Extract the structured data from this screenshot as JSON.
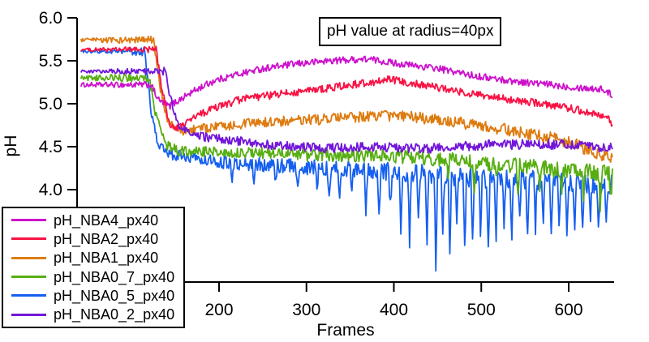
{
  "chart_data": {
    "type": "line",
    "title": "pH value at radius=40px",
    "xlabel": "Frames",
    "ylabel": "pH",
    "xlim": [
      37,
      652
    ],
    "ylim": [
      2.92,
      6.0
    ],
    "x_ticks": [
      200,
      300,
      400,
      500,
      600
    ],
    "y_ticks": [
      4.0,
      4.5,
      5.0,
      5.5,
      6.0
    ],
    "y_tick_labels": [
      "4.0",
      "4.5",
      "5.0",
      "5.5",
      "6.0"
    ],
    "grid": false,
    "legend_position": "bottom-left",
    "frame_range": [
      42,
      650
    ],
    "series": [
      {
        "name": "pH_NBA4_px40",
        "color": "#cc11cc",
        "anchors": [
          [
            42,
            5.22
          ],
          [
            122,
            5.22
          ],
          [
            131,
            5.04
          ],
          [
            143,
            4.97
          ],
          [
            157,
            5.06
          ],
          [
            175,
            5.17
          ],
          [
            195,
            5.27
          ],
          [
            220,
            5.34
          ],
          [
            250,
            5.41
          ],
          [
            285,
            5.46
          ],
          [
            325,
            5.5
          ],
          [
            370,
            5.52
          ],
          [
            410,
            5.46
          ],
          [
            450,
            5.41
          ],
          [
            490,
            5.33
          ],
          [
            530,
            5.27
          ],
          [
            570,
            5.23
          ],
          [
            610,
            5.19
          ],
          [
            638,
            5.17
          ],
          [
            650,
            5.1
          ]
        ],
        "noise": [
          [
            42,
            0.025
          ],
          [
            130,
            0.04
          ],
          [
            650,
            0.04
          ]
        ],
        "spikes": []
      },
      {
        "name": "pH_NBA2_px40",
        "color": "#f81243",
        "anchors": [
          [
            42,
            5.63
          ],
          [
            128,
            5.63
          ],
          [
            135,
            5.15
          ],
          [
            143,
            4.78
          ],
          [
            150,
            4.7
          ],
          [
            160,
            4.76
          ],
          [
            173,
            4.85
          ],
          [
            195,
            4.95
          ],
          [
            225,
            5.05
          ],
          [
            260,
            5.1
          ],
          [
            300,
            5.15
          ],
          [
            345,
            5.21
          ],
          [
            395,
            5.28
          ],
          [
            445,
            5.2
          ],
          [
            495,
            5.1
          ],
          [
            545,
            5.03
          ],
          [
            585,
            4.98
          ],
          [
            625,
            4.9
          ],
          [
            645,
            4.84
          ],
          [
            650,
            4.73
          ]
        ],
        "noise": [
          [
            42,
            0.015
          ],
          [
            135,
            0.045
          ],
          [
            650,
            0.045
          ]
        ],
        "spikes": []
      },
      {
        "name": "pH_NBA1_px40",
        "color": "#de7b10",
        "anchors": [
          [
            42,
            5.74
          ],
          [
            125,
            5.74
          ],
          [
            133,
            5.15
          ],
          [
            143,
            4.76
          ],
          [
            157,
            4.68
          ],
          [
            180,
            4.71
          ],
          [
            220,
            4.76
          ],
          [
            265,
            4.79
          ],
          [
            320,
            4.82
          ],
          [
            380,
            4.86
          ],
          [
            410,
            4.86
          ],
          [
            460,
            4.8
          ],
          [
            505,
            4.74
          ],
          [
            545,
            4.67
          ],
          [
            580,
            4.6
          ],
          [
            615,
            4.5
          ],
          [
            640,
            4.4
          ],
          [
            650,
            4.35
          ]
        ],
        "noise": [
          [
            42,
            0.02
          ],
          [
            140,
            0.055
          ],
          [
            560,
            0.07
          ],
          [
            650,
            0.08
          ]
        ],
        "spikes": []
      },
      {
        "name": "pH_NBA0_7_px40",
        "color": "#57ae12",
        "anchors": [
          [
            42,
            5.3
          ],
          [
            120,
            5.3
          ],
          [
            128,
            4.85
          ],
          [
            139,
            4.52
          ],
          [
            155,
            4.45
          ],
          [
            190,
            4.44
          ],
          [
            240,
            4.43
          ],
          [
            300,
            4.4
          ],
          [
            360,
            4.4
          ],
          [
            420,
            4.38
          ],
          [
            480,
            4.33
          ],
          [
            540,
            4.28
          ],
          [
            600,
            4.22
          ],
          [
            650,
            4.18
          ]
        ],
        "noise": [
          [
            42,
            0.03
          ],
          [
            135,
            0.055
          ],
          [
            400,
            0.08
          ],
          [
            650,
            0.1
          ]
        ],
        "spikes": [
          [
            462,
            -0.22
          ],
          [
            492,
            -0.28
          ],
          [
            517,
            -0.22
          ],
          [
            542,
            -0.32
          ],
          [
            567,
            -0.28
          ],
          [
            592,
            -0.33
          ],
          [
            617,
            -0.28
          ],
          [
            636,
            -0.38
          ],
          [
            648,
            -0.3
          ]
        ]
      },
      {
        "name": "pH_NBA0_5_px40",
        "color": "#155ff0",
        "anchors": [
          [
            42,
            5.61
          ],
          [
            115,
            5.61
          ],
          [
            122,
            4.95
          ],
          [
            129,
            4.55
          ],
          [
            140,
            4.42
          ],
          [
            165,
            4.38
          ],
          [
            200,
            4.32
          ],
          [
            250,
            4.29
          ],
          [
            300,
            4.26
          ],
          [
            350,
            4.24
          ],
          [
            400,
            4.2
          ],
          [
            450,
            4.16
          ],
          [
            500,
            4.14
          ],
          [
            550,
            4.12
          ],
          [
            600,
            4.1
          ],
          [
            650,
            4.06
          ]
        ],
        "noise": [
          [
            42,
            0.015
          ],
          [
            130,
            0.06
          ],
          [
            300,
            0.09
          ],
          [
            450,
            0.12
          ],
          [
            650,
            0.12
          ]
        ],
        "spikes": [
          [
            215,
            -0.2
          ],
          [
            240,
            -0.25
          ],
          [
            265,
            -0.2
          ],
          [
            290,
            -0.3
          ],
          [
            312,
            -0.25
          ],
          [
            326,
            -0.3
          ],
          [
            338,
            -0.35
          ],
          [
            352,
            -0.3
          ],
          [
            368,
            -0.45
          ],
          [
            383,
            -0.55
          ],
          [
            396,
            -0.4
          ],
          [
            408,
            -0.7
          ],
          [
            418,
            -0.85
          ],
          [
            428,
            -0.6
          ],
          [
            438,
            -0.75
          ],
          [
            448,
            -1.0
          ],
          [
            456,
            -0.7
          ],
          [
            464,
            -0.85
          ],
          [
            472,
            -0.6
          ],
          [
            481,
            -0.9
          ],
          [
            490,
            -0.75
          ],
          [
            499,
            -0.6
          ],
          [
            508,
            -0.8
          ],
          [
            517,
            -0.65
          ],
          [
            526,
            -0.55
          ],
          [
            535,
            -0.7
          ],
          [
            544,
            -0.5
          ],
          [
            553,
            -0.75
          ],
          [
            562,
            -0.6
          ],
          [
            571,
            -0.45
          ],
          [
            580,
            -0.7
          ],
          [
            589,
            -0.55
          ],
          [
            598,
            -0.65
          ],
          [
            607,
            -0.5
          ],
          [
            616,
            -0.6
          ],
          [
            625,
            -0.45
          ],
          [
            634,
            -0.6
          ],
          [
            643,
            -0.5
          ]
        ]
      },
      {
        "name": "pH_NBA0_2_px40",
        "color": "#7216d9",
        "anchors": [
          [
            42,
            5.38
          ],
          [
            138,
            5.38
          ],
          [
            146,
            5.0
          ],
          [
            154,
            4.76
          ],
          [
            170,
            4.63
          ],
          [
            210,
            4.58
          ],
          [
            260,
            4.52
          ],
          [
            320,
            4.48
          ],
          [
            380,
            4.5
          ],
          [
            440,
            4.48
          ],
          [
            500,
            4.52
          ],
          [
            560,
            4.53
          ],
          [
            610,
            4.52
          ],
          [
            650,
            4.49
          ]
        ],
        "noise": [
          [
            42,
            0.02
          ],
          [
            150,
            0.05
          ],
          [
            650,
            0.06
          ]
        ],
        "spikes": []
      }
    ]
  }
}
